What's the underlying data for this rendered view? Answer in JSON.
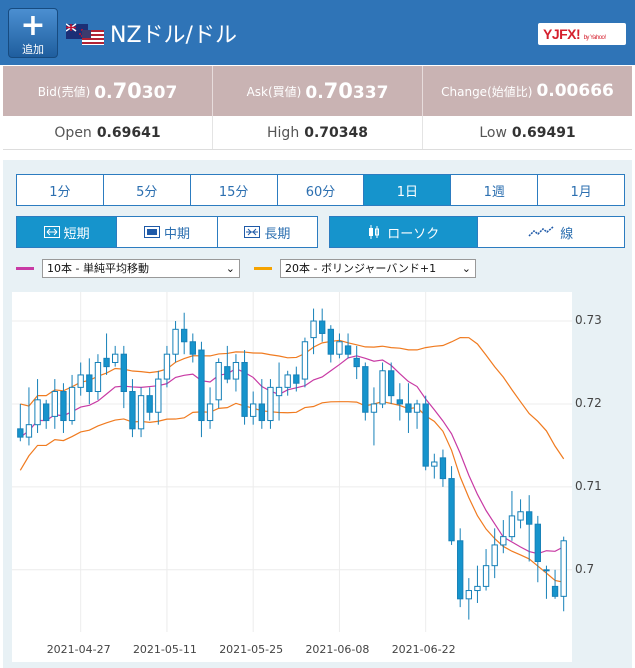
{
  "header": {
    "add_label": "追加",
    "title": "NZドル/ドル",
    "logo_text": "YJFX!",
    "logo_sub": "by Yahoo!"
  },
  "quote": {
    "bid_label": "Bid(売値)",
    "bid_prefix": "0.",
    "bid_big": "70",
    "bid_rest": "307",
    "ask_label": "Ask(買値)",
    "ask_prefix": "0.",
    "ask_big": "70",
    "ask_rest": "337",
    "change_label": "Change(始値比)",
    "change_value": "0.00666"
  },
  "ohl": {
    "open_label": "Open",
    "open_value": "0.69641",
    "high_label": "High",
    "high_value": "0.70348",
    "low_label": "Low",
    "low_value": "0.69491"
  },
  "timeframes": [
    "1分",
    "5分",
    "15分",
    "60分",
    "1日",
    "1週",
    "1月"
  ],
  "timeframe_active": 4,
  "terms": [
    {
      "label": "短期",
      "icon": "short-term-icon"
    },
    {
      "label": "中期",
      "icon": "mid-term-icon"
    },
    {
      "label": "長期",
      "icon": "long-term-icon"
    }
  ],
  "term_active": 0,
  "chart_types": [
    {
      "label": "ローソク",
      "icon": "candlestick-icon"
    },
    {
      "label": "線",
      "icon": "line-chart-icon"
    }
  ],
  "chart_type_active": 0,
  "indicators": {
    "ma_label": "10本 - 単純平均移動",
    "ma_color": "#c83aa4",
    "bb_label": "20本 - ボリンジャーバンド+1",
    "bb_color": "#f5a300"
  },
  "colors": {
    "header_bg": "#2f74b7",
    "active_bg": "#1694cc",
    "candle": "#1694cc",
    "band": "#f07b20",
    "ma": "#c83aa4"
  },
  "chart_data": {
    "type": "candlestick",
    "ylim": [
      0.6925,
      0.7335
    ],
    "yticks": [
      "0.73",
      "0.72",
      "0.71",
      "0.7"
    ],
    "ytick_values": [
      0.73,
      0.72,
      0.71,
      0.7
    ],
    "xtick_labels": [
      "2021-04-27",
      "2021-05-11",
      "2021-05-25",
      "2021-06-08",
      "2021-06-22"
    ],
    "xtick_index": [
      7,
      17,
      27,
      37,
      47
    ],
    "candles": [
      [
        0.717,
        0.72,
        0.716,
        0.7155
      ],
      [
        0.716,
        0.722,
        0.7175,
        0.715
      ],
      [
        0.7175,
        0.723,
        0.7205,
        0.7165
      ],
      [
        0.72,
        0.7205,
        0.718,
        0.717
      ],
      [
        0.7185,
        0.723,
        0.7215,
        0.717
      ],
      [
        0.7215,
        0.7225,
        0.718,
        0.7165
      ],
      [
        0.718,
        0.7235,
        0.722,
        0.7175
      ],
      [
        0.722,
        0.725,
        0.7235,
        0.721
      ],
      [
        0.7235,
        0.7255,
        0.7215,
        0.72
      ],
      [
        0.7215,
        0.726,
        0.725,
        0.7205
      ],
      [
        0.7255,
        0.7285,
        0.7245,
        0.7235
      ],
      [
        0.725,
        0.727,
        0.726,
        0.7245
      ],
      [
        0.726,
        0.727,
        0.7215,
        0.7195
      ],
      [
        0.7215,
        0.723,
        0.717,
        0.716
      ],
      [
        0.717,
        0.722,
        0.721,
        0.716
      ],
      [
        0.721,
        0.722,
        0.719,
        0.718
      ],
      [
        0.719,
        0.724,
        0.723,
        0.7175
      ],
      [
        0.723,
        0.727,
        0.726,
        0.722
      ],
      [
        0.726,
        0.73,
        0.729,
        0.725
      ],
      [
        0.729,
        0.731,
        0.7275,
        0.726
      ],
      [
        0.7275,
        0.7285,
        0.726,
        0.725
      ],
      [
        0.7265,
        0.7275,
        0.718,
        0.716
      ],
      [
        0.718,
        0.722,
        0.72,
        0.717
      ],
      [
        0.7205,
        0.7255,
        0.725,
        0.7195
      ],
      [
        0.7245,
        0.727,
        0.723,
        0.7225
      ],
      [
        0.723,
        0.726,
        0.725,
        0.7215
      ],
      [
        0.725,
        0.7265,
        0.7185,
        0.7175
      ],
      [
        0.7185,
        0.7215,
        0.72,
        0.7175
      ],
      [
        0.72,
        0.723,
        0.718,
        0.717
      ],
      [
        0.718,
        0.723,
        0.722,
        0.717
      ],
      [
        0.721,
        0.725,
        0.722,
        0.718
      ],
      [
        0.722,
        0.724,
        0.7235,
        0.721
      ],
      [
        0.7235,
        0.7245,
        0.7225,
        0.7215
      ],
      [
        0.723,
        0.728,
        0.7275,
        0.722
      ],
      [
        0.728,
        0.7315,
        0.73,
        0.726
      ],
      [
        0.73,
        0.7315,
        0.7285,
        0.7275
      ],
      [
        0.729,
        0.7295,
        0.726,
        0.725
      ],
      [
        0.726,
        0.7285,
        0.7275,
        0.7255
      ],
      [
        0.727,
        0.7285,
        0.726,
        0.7255
      ],
      [
        0.7255,
        0.727,
        0.7245,
        0.723
      ],
      [
        0.7245,
        0.725,
        0.719,
        0.718
      ],
      [
        0.719,
        0.722,
        0.72,
        0.715
      ],
      [
        0.72,
        0.725,
        0.724,
        0.7195
      ],
      [
        0.724,
        0.725,
        0.721,
        0.72
      ],
      [
        0.7205,
        0.7225,
        0.72,
        0.718
      ],
      [
        0.72,
        0.7225,
        0.719,
        0.7165
      ],
      [
        0.719,
        0.7205,
        0.72,
        0.717
      ],
      [
        0.72,
        0.721,
        0.7125,
        0.712
      ],
      [
        0.7125,
        0.714,
        0.713,
        0.711
      ],
      [
        0.7135,
        0.7145,
        0.711,
        0.71
      ],
      [
        0.711,
        0.7125,
        0.7035,
        0.703
      ],
      [
        0.7035,
        0.705,
        0.6965,
        0.6955
      ],
      [
        0.6965,
        0.699,
        0.6975,
        0.694
      ],
      [
        0.6975,
        0.7005,
        0.698,
        0.696
      ],
      [
        0.698,
        0.7025,
        0.7005,
        0.6975
      ],
      [
        0.7005,
        0.705,
        0.703,
        0.699
      ],
      [
        0.703,
        0.706,
        0.704,
        0.702
      ],
      [
        0.704,
        0.7095,
        0.7065,
        0.7035
      ],
      [
        0.706,
        0.7085,
        0.707,
        0.705
      ],
      [
        0.707,
        0.709,
        0.7055,
        0.701
      ],
      [
        0.7055,
        0.7065,
        0.701,
        0.6985
      ],
      [
        0.7,
        0.7005,
        0.7,
        0.6965
      ],
      [
        0.698,
        0.7,
        0.6968,
        0.6965
      ],
      [
        0.6968,
        0.704,
        0.7035,
        0.695
      ]
    ]
  }
}
